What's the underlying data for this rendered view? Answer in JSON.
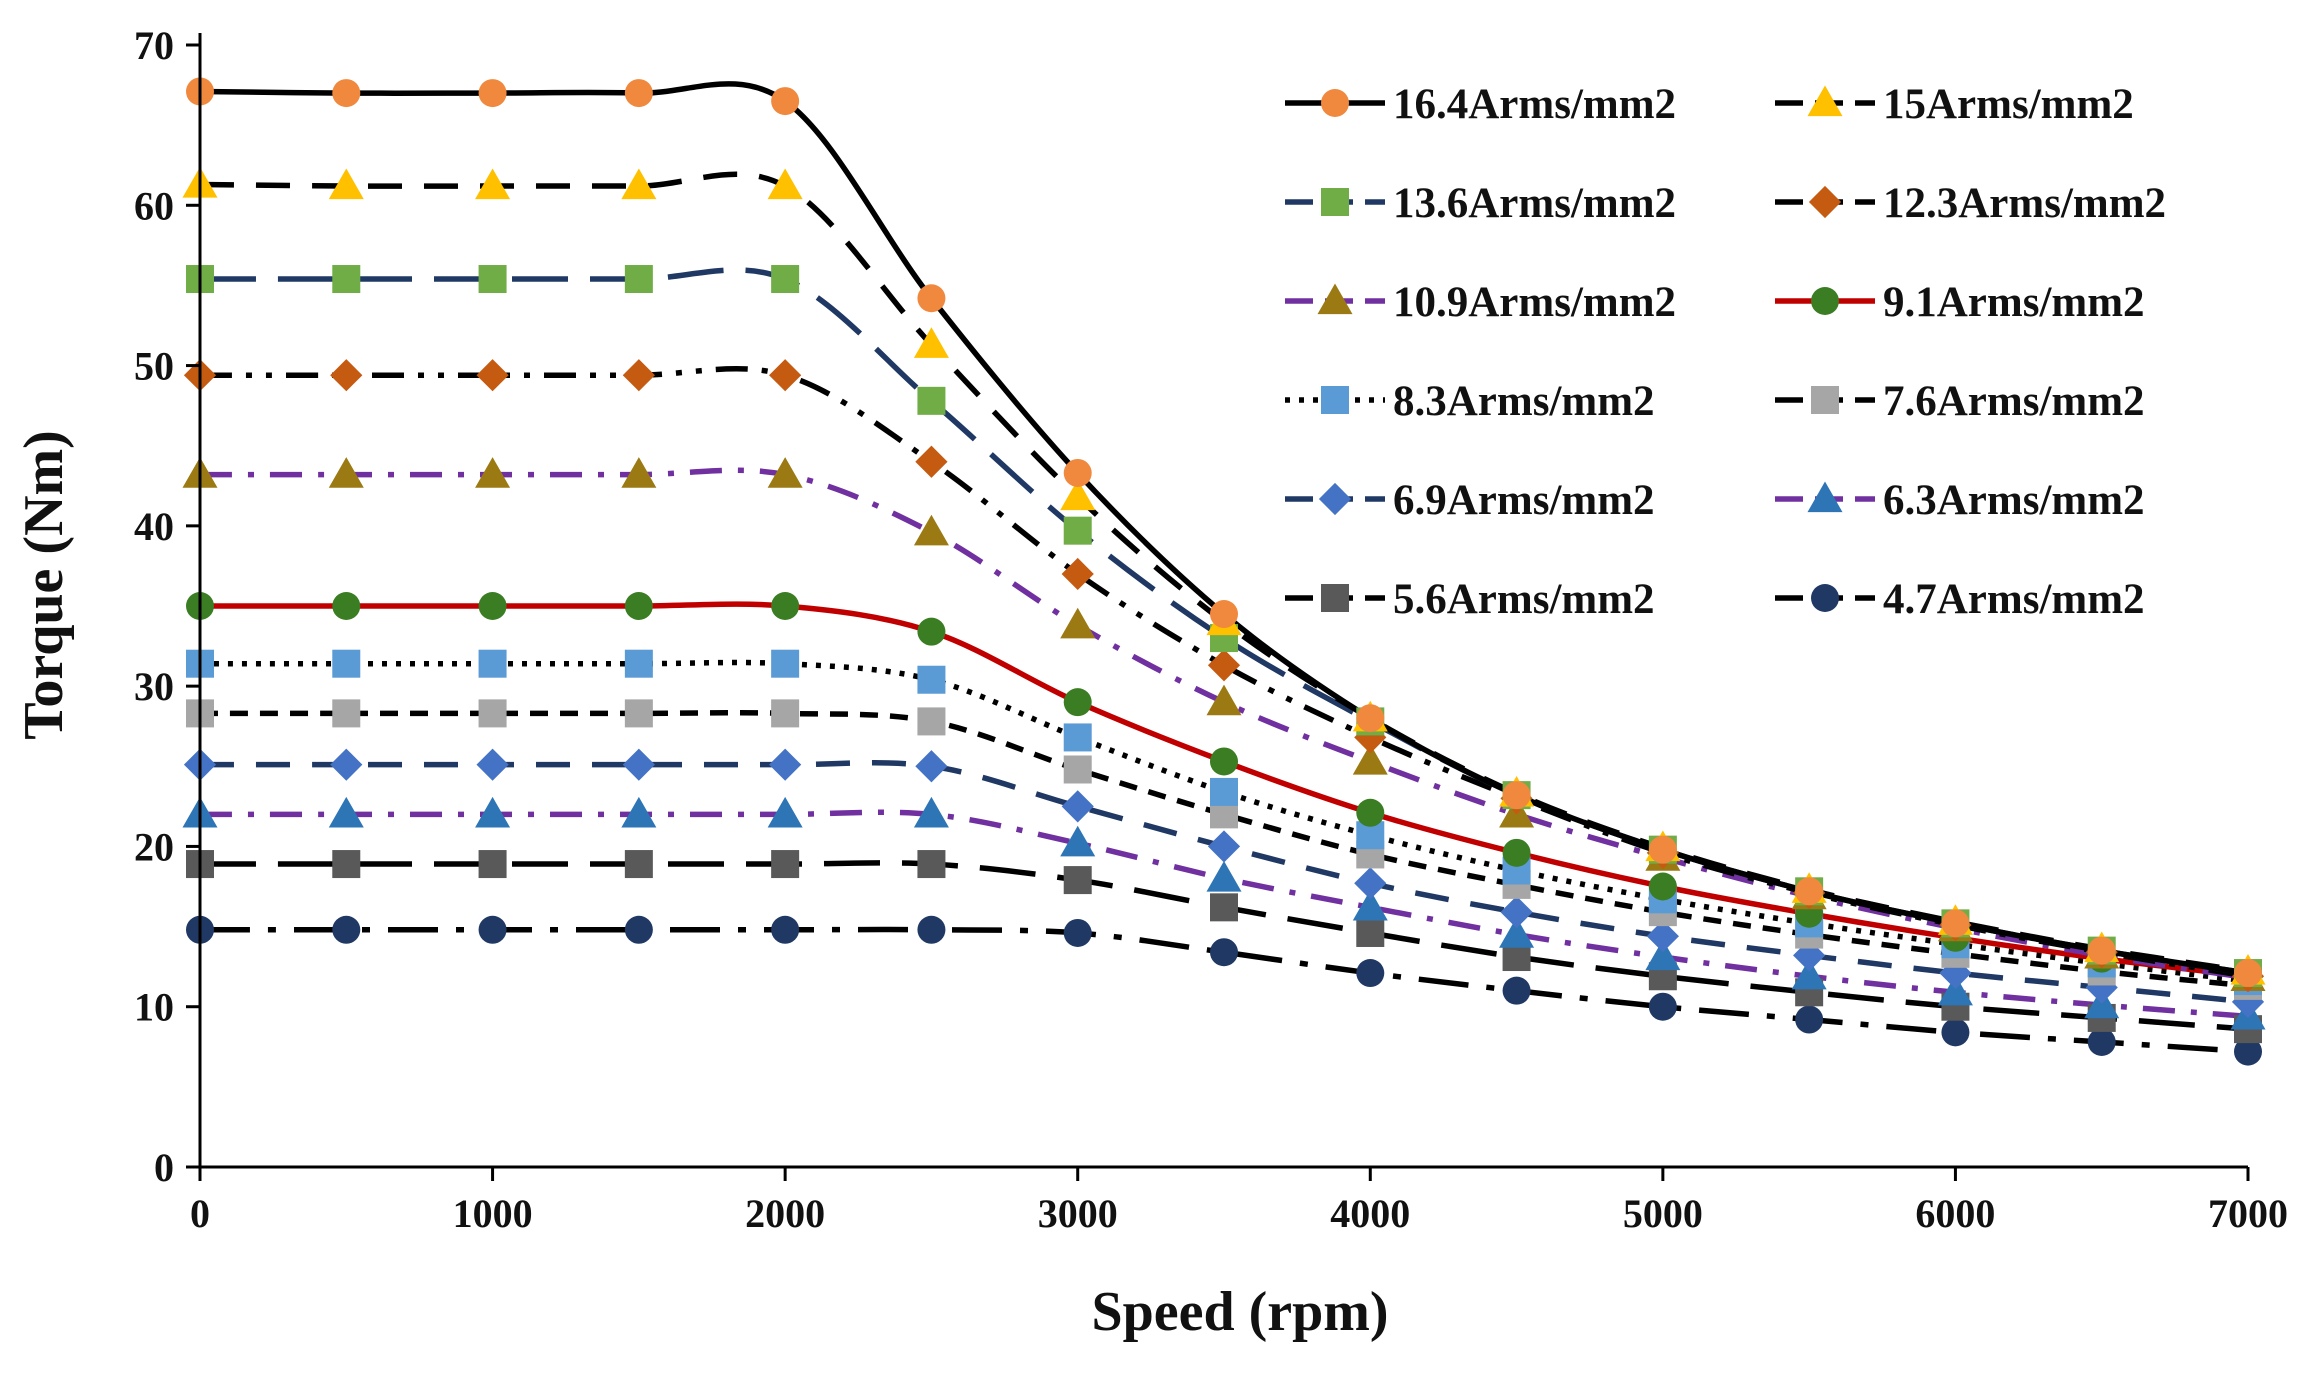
{
  "chart_data": {
    "type": "line",
    "title": "",
    "xlabel": "Speed (rpm)",
    "ylabel": "Torque (Nm)",
    "xlim": [
      0,
      7000
    ],
    "ylim": [
      0,
      70
    ],
    "xticks": [
      0,
      1000,
      2000,
      3000,
      4000,
      5000,
      6000,
      7000
    ],
    "yticks": [
      0,
      10,
      20,
      30,
      40,
      50,
      60,
      70
    ],
    "grid": false,
    "legend_position": "top-right",
    "x": [
      0,
      500,
      1000,
      1500,
      2000,
      2500,
      3000,
      3500,
      4000,
      4500,
      5000,
      5500,
      6000,
      6500,
      7000
    ],
    "series": [
      {
        "name": "16.4Arms/mm2",
        "color": "#000000",
        "dash": "solid",
        "marker": "circle",
        "marker_color": "#f0883e",
        "values": [
          67.1,
          67.0,
          67.0,
          67.0,
          66.5,
          54.2,
          43.3,
          34.5,
          28.0,
          23.2,
          19.8,
          17.2,
          15.2,
          13.5,
          12.1
        ]
      },
      {
        "name": "15Arms/mm2",
        "color": "#000000",
        "dash": "dash",
        "marker": "triangle",
        "marker_color": "#ffc000",
        "values": [
          61.3,
          61.2,
          61.2,
          61.2,
          61.2,
          51.3,
          41.8,
          34.0,
          28.0,
          23.3,
          19.9,
          17.3,
          15.3,
          13.6,
          12.2
        ]
      },
      {
        "name": "13.6Arms/mm2",
        "color": "#1f3864",
        "dash": "longdash",
        "marker": "square",
        "marker_color": "#70ad47",
        "values": [
          55.4,
          55.4,
          55.4,
          55.4,
          55.4,
          47.8,
          39.7,
          33.0,
          27.8,
          23.2,
          19.8,
          17.2,
          15.2,
          13.5,
          12.1
        ]
      },
      {
        "name": "12.3Arms/mm2",
        "color": "#000000",
        "dash": "dashdotdot",
        "marker": "diamond",
        "marker_color": "#c55a11",
        "values": [
          49.4,
          49.4,
          49.4,
          49.4,
          49.4,
          44.0,
          37.0,
          31.3,
          26.8,
          23.0,
          19.6,
          17.1,
          15.1,
          13.4,
          11.9
        ]
      },
      {
        "name": "10.9Arms/mm2",
        "color": "#7030a0",
        "dash": "dashdot",
        "marker": "triangle",
        "marker_color": "#9c7a13",
        "values": [
          43.2,
          43.2,
          43.2,
          43.2,
          43.2,
          39.6,
          33.8,
          29.0,
          25.3,
          22.0,
          19.3,
          16.9,
          14.9,
          13.2,
          11.8
        ]
      },
      {
        "name": "9.1Arms/mm2",
        "color": "#c00000",
        "dash": "solid",
        "marker": "circle",
        "marker_color": "#3a7d22",
        "values": [
          35.0,
          35.0,
          35.0,
          35.0,
          35.0,
          33.4,
          29.0,
          25.3,
          22.1,
          19.6,
          17.5,
          15.8,
          14.3,
          13.0,
          11.9
        ]
      },
      {
        "name": "8.3Arms/mm2",
        "color": "#000000",
        "dash": "dot",
        "marker": "square",
        "marker_color": "#5b9bd5",
        "values": [
          31.4,
          31.4,
          31.4,
          31.4,
          31.4,
          30.4,
          26.8,
          23.4,
          20.7,
          18.5,
          16.7,
          15.2,
          13.9,
          12.7,
          11.6
        ]
      },
      {
        "name": "7.6Arms/mm2",
        "color": "#000000",
        "dash": "shortdash",
        "marker": "square",
        "marker_color": "#a6a6a6",
        "values": [
          28.3,
          28.3,
          28.3,
          28.3,
          28.3,
          27.8,
          24.8,
          22.0,
          19.5,
          17.6,
          15.9,
          14.5,
          13.3,
          12.2,
          11.3
        ]
      },
      {
        "name": "6.9Arms/mm2",
        "color": "#1f3864",
        "dash": "dash",
        "marker": "diamond",
        "marker_color": "#4472c4",
        "values": [
          25.1,
          25.1,
          25.1,
          25.1,
          25.1,
          25.0,
          22.5,
          20.0,
          17.7,
          15.9,
          14.4,
          13.2,
          12.1,
          11.2,
          10.3
        ]
      },
      {
        "name": "6.3Arms/mm2",
        "color": "#7030a0",
        "dash": "dashdot",
        "marker": "triangle",
        "marker_color": "#2e75b6",
        "values": [
          22.0,
          22.0,
          22.0,
          22.0,
          22.0,
          22.0,
          20.2,
          18.0,
          16.2,
          14.5,
          13.1,
          11.9,
          10.9,
          10.1,
          9.4
        ]
      },
      {
        "name": "5.6Arms/mm2",
        "color": "#000000",
        "dash": "longdash",
        "marker": "square",
        "marker_color": "#595959",
        "values": [
          18.9,
          18.9,
          18.9,
          18.9,
          18.9,
          18.9,
          17.9,
          16.2,
          14.6,
          13.1,
          11.9,
          10.9,
          10.0,
          9.3,
          8.6
        ]
      },
      {
        "name": "4.7Arms/mm2",
        "color": "#000000",
        "dash": "longdashdot",
        "marker": "circle",
        "marker_color": "#203864",
        "values": [
          14.8,
          14.8,
          14.8,
          14.8,
          14.8,
          14.8,
          14.6,
          13.4,
          12.1,
          11.0,
          10.0,
          9.2,
          8.4,
          7.8,
          7.2
        ]
      }
    ]
  }
}
